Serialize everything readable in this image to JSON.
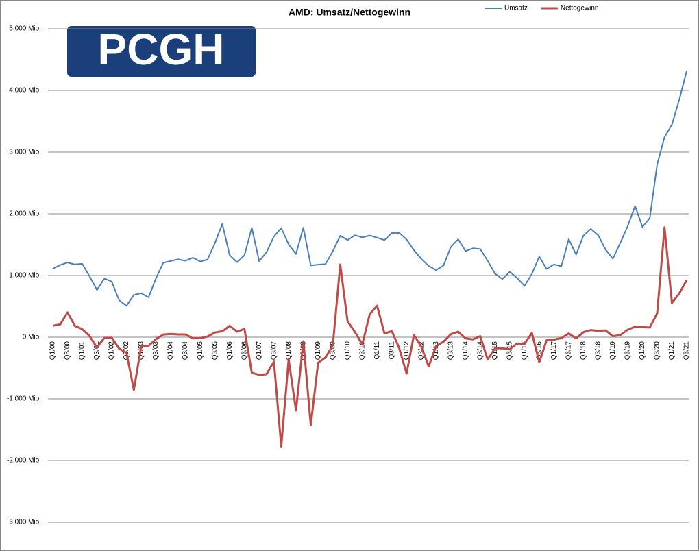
{
  "logo": "PCGH",
  "chart_data": {
    "type": "line",
    "title": "AMD: Umsatz/Nettogewinn",
    "categories": [
      "Q1/00",
      null,
      "Q3/00",
      null,
      "Q1/01",
      null,
      "Q3/01",
      null,
      "Q1/02",
      null,
      "Q3/02",
      null,
      "Q1/03",
      null,
      "Q3/03",
      null,
      "Q1/04",
      null,
      "Q3/04",
      null,
      "Q1/05",
      null,
      "Q3/05",
      null,
      "Q1/06",
      null,
      "Q3/06",
      null,
      "Q1/07",
      null,
      "Q3/07",
      null,
      "Q1/08",
      null,
      "Q3/08",
      null,
      "Q1/09",
      null,
      "Q3/09",
      null,
      "Q1/10",
      null,
      "Q3/10",
      null,
      "Q1/11",
      null,
      "Q3/11",
      null,
      "Q1/12",
      null,
      "Q3/12",
      null,
      "Q1/13",
      null,
      "Q3/13",
      null,
      "Q1/14",
      null,
      "Q3/14",
      null,
      "Q1/15",
      null,
      "Q3/15",
      null,
      "Q1/16",
      null,
      "Q3/16",
      null,
      "Q1/17",
      null,
      "Q3/17",
      null,
      "Q1/18",
      null,
      "Q3/18",
      null,
      "Q1/19",
      null,
      "Q3/19",
      null,
      "Q1/20",
      null,
      "Q3/20",
      null,
      "Q1/21",
      null,
      "Q3/21"
    ],
    "series": [
      {
        "name": "Umsatz",
        "color": "#4a7ebb",
        "values": [
          1110,
          1170,
          1210,
          1180,
          1190,
          985,
          766,
          951,
          902,
          600,
          508,
          686,
          715,
          645,
          954,
          1207,
          1236,
          1262,
          1239,
          1290,
          1227,
          1260,
          1523,
          1838,
          1332,
          1216,
          1328,
          1773,
          1233,
          1378,
          1632,
          1770,
          1505,
          1349,
          1776,
          1162,
          1177,
          1184,
          1396,
          1646,
          1574,
          1653,
          1618,
          1649,
          1613,
          1574,
          1690,
          1691,
          1585,
          1413,
          1269,
          1155,
          1088,
          1161,
          1461,
          1589,
          1397,
          1441,
          1429,
          1239,
          1030,
          942,
          1061,
          958,
          832,
          1027,
          1307,
          1106,
          1180,
          1150,
          1590,
          1340,
          1647,
          1756,
          1653,
          1419,
          1272,
          1531,
          1801,
          2127,
          1786,
          1932,
          2801,
          3244,
          3445,
          3850,
          4313
        ]
      },
      {
        "name": "Nettogewinn",
        "color": "#be4b48",
        "values": [
          186,
          207,
          401,
          183,
          130,
          18,
          -170,
          -10,
          -8,
          -185,
          -254,
          -855,
          -146,
          -140,
          -31,
          43,
          53,
          44,
          44,
          -20,
          -17,
          11,
          76,
          96,
          185,
          89,
          135,
          -574,
          -611,
          -600,
          -396,
          -1772,
          -358,
          -1189,
          -67,
          -1424,
          -416,
          -330,
          -128,
          1178,
          257,
          83,
          -118,
          375,
          510,
          61,
          97,
          -177,
          -590,
          37,
          -157,
          -473,
          -146,
          -74,
          48,
          89,
          -20,
          -36,
          17,
          -364,
          -180,
          -181,
          -197,
          -102,
          -109,
          69,
          -406,
          -51,
          -40,
          -16,
          61,
          -19,
          81,
          116,
          102,
          110,
          16,
          35,
          120,
          170,
          162,
          157,
          390,
          1781,
          555,
          710,
          923
        ]
      }
    ],
    "ylim": [
      -3000,
      5000
    ],
    "yticks": [
      {
        "value": -3000,
        "label": "-3.000 Mio."
      },
      {
        "value": -2000,
        "label": "-2.000 Mio."
      },
      {
        "value": -1000,
        "label": "-1.000 Mio."
      },
      {
        "value": 0,
        "label": "0 Mio."
      },
      {
        "value": 1000,
        "label": "1.000 Mio."
      },
      {
        "value": 2000,
        "label": "2.000 Mio."
      },
      {
        "value": 3000,
        "label": "3.000 Mio."
      },
      {
        "value": 4000,
        "label": "4.000 Mio."
      },
      {
        "value": 5000,
        "label": "5.000 Mio."
      }
    ],
    "grid": true,
    "legend": "top-right"
  }
}
